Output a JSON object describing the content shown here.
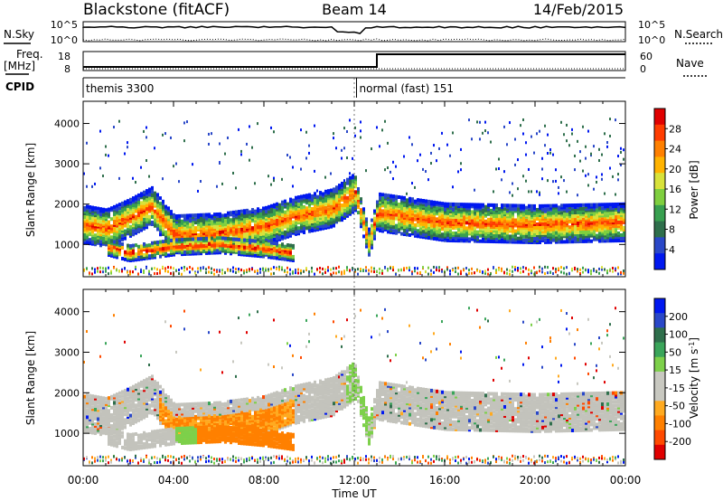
{
  "header": {
    "radar": "Blackstone (fitACF)",
    "beam": "Beam 14",
    "date": "14/Feb/2015"
  },
  "strips": {
    "nsky_label": "N.Sky",
    "nsky_ticks": [
      "10^5",
      "10^0"
    ],
    "nsearch_label": "N.Search",
    "nsearch_ticks": [
      "10^5",
      "10^0"
    ],
    "freq_label": "Freq.",
    "freq_unit": "[MHz]",
    "freq_ticks": [
      "18",
      "8"
    ],
    "nave_label": "Nave",
    "nave_ticks": [
      "60",
      "0"
    ],
    "cpid_label": "CPID",
    "cpid_segments": [
      {
        "label": "themis 3300",
        "start_hour": 0,
        "end_hour": 12.1
      },
      {
        "label": "normal (fast) 151",
        "start_hour": 12.1,
        "end_hour": 24
      }
    ]
  },
  "colors": {
    "power_scale": [
      "#0018f0",
      "#2a48c8",
      "#2f6f4c",
      "#38a050",
      "#7fcf3f",
      "#d8e23a",
      "#ffb300",
      "#ff8000",
      "#ff3c00",
      "#e00000"
    ],
    "velocity_scale": [
      "#e00000",
      "#ff4a00",
      "#ff8000",
      "#ffaa20",
      "#c8c8c0",
      "#c8c8c0",
      "#7dd04a",
      "#3aa55a",
      "#2f6f4c",
      "#2a48c8",
      "#0018f0"
    ],
    "ground_scatter": "#c3c3bc"
  },
  "chart_data": [
    {
      "type": "heatmap",
      "panel": "power",
      "ylabel": "Slant Range [km]",
      "yticks": [
        1000,
        2000,
        3000,
        4000
      ],
      "ylim": [
        200,
        4550
      ],
      "xlim_hours": [
        0,
        24
      ],
      "colorbar_label": "Power [dB]",
      "colorbar_ticks": [
        4,
        8,
        12,
        16,
        20,
        24,
        28
      ],
      "bands": [
        {
          "label": "main echo band",
          "points": [
            [
              0,
              1500
            ],
            [
              1,
              1400
            ],
            [
              2,
              1650
            ],
            [
              3,
              1950
            ],
            [
              4,
              1250
            ],
            [
              6,
              1300
            ],
            [
              8,
              1450
            ],
            [
              9.3,
              1700
            ],
            [
              11,
              1900
            ],
            [
              12,
              2300
            ],
            [
              12.6,
              1050
            ],
            [
              13,
              1800
            ],
            [
              16,
              1550
            ],
            [
              20,
              1500
            ],
            [
              24,
              1550
            ]
          ]
        },
        {
          "label": "lower band",
          "points": [
            [
              1,
              950
            ],
            [
              2,
              800
            ],
            [
              4,
              950
            ],
            [
              6,
              1000
            ],
            [
              8,
              900
            ],
            [
              9.3,
              800
            ]
          ]
        }
      ]
    },
    {
      "type": "heatmap",
      "panel": "velocity",
      "ylabel": "Slant Range [km]",
      "yticks": [
        1000,
        2000,
        3000,
        4000
      ],
      "ylim": [
        200,
        4550
      ],
      "xlim_hours": [
        0,
        24
      ],
      "colorbar_label": "Velocity [m s-1]",
      "colorbar_ticks": [
        200,
        100,
        50,
        15,
        -15,
        -50,
        -100,
        -200
      ]
    }
  ],
  "xaxis": {
    "ticks": [
      "00:00",
      "04:00",
      "08:00",
      "12:00",
      "16:00",
      "20:00",
      "00:00"
    ],
    "label": "Time UT"
  }
}
